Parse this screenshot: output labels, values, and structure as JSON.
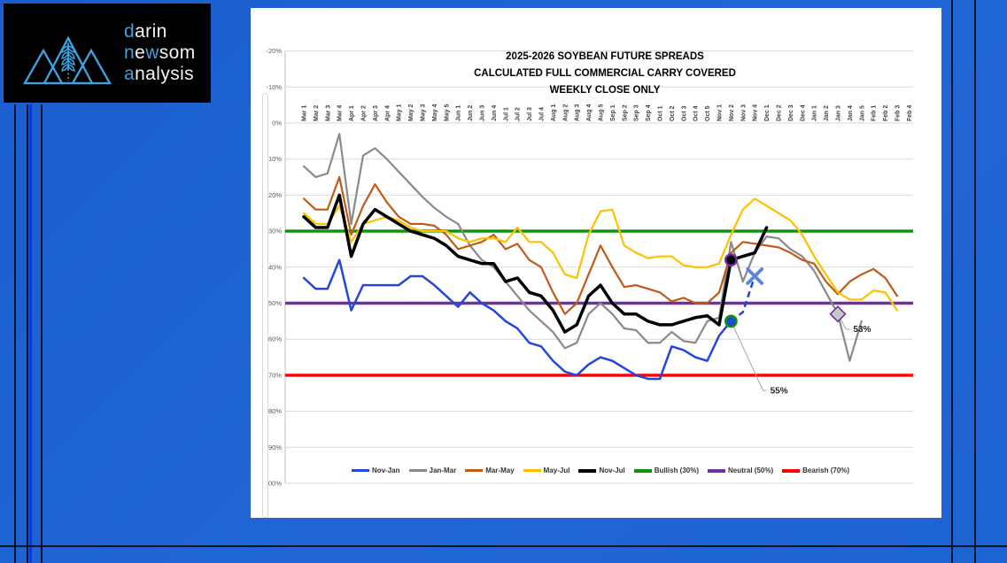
{
  "page": {
    "background": "#1e63d2",
    "accent_stripe_blue": "#0636f0",
    "dark_line": "#0a132e",
    "panel_color": "#ffffff"
  },
  "logo": {
    "box_color": "#000000",
    "accent": "#3aa3e0",
    "text_color": "#f2f2f2",
    "icon": "mountains-wheat-icon",
    "lines": [
      [
        {
          "t": "d",
          "a": 1
        },
        {
          "t": "arin",
          "a": 0
        }
      ],
      [
        {
          "t": "n",
          "a": 1
        },
        {
          "t": "e",
          "a": 0
        },
        {
          "t": "w",
          "a": 1
        },
        {
          "t": "som",
          "a": 0
        }
      ],
      [
        {
          "t": "a",
          "a": 1
        },
        {
          "t": "nalysis",
          "a": 0
        }
      ]
    ]
  },
  "chart_data": {
    "type": "line",
    "title": [
      "2025-2026 SOYBEAN FUTURE SPREADS",
      "CALCULATED FULL COMMERCIAL CARRY COVERED",
      "WEEKLY CLOSE ONLY"
    ],
    "y_axis": {
      "unit": "%",
      "inverted": true,
      "min": -20,
      "max": 100,
      "step": 10,
      "tick_values": [
        -20,
        -10,
        0,
        10,
        20,
        30,
        40,
        50,
        60,
        70,
        80,
        90,
        100
      ],
      "tick_labels": [
        "-20%",
        "-10%",
        "0%",
        "10%",
        "20%",
        "30%",
        "40%",
        "50%",
        "60%",
        "70%",
        "80%",
        "90%",
        "100%"
      ]
    },
    "grid": true,
    "legend_position": "bottom",
    "categories": [
      "Mar 1",
      "Mar 2",
      "Mar 3",
      "Mar 4",
      "Apr 1",
      "Apr 2",
      "Apr 3",
      "Apr 4",
      "May 1",
      "May 2",
      "May 3",
      "May 4",
      "May 5",
      "Jun 1",
      "Jun 2",
      "Jun 3",
      "Jun 4",
      "Jul 1",
      "Jul 2",
      "Jul 3",
      "Jul 4",
      "Aug 1",
      "Aug 2",
      "Aug 3",
      "Aug 4",
      "Aug 5",
      "Sep 1",
      "Sep 2",
      "Sep 3",
      "Sep 4",
      "Oct 1",
      "Oct 2",
      "Oct 3",
      "Oct 4",
      "Oct 5",
      "Nov 1",
      "Nov 2",
      "Nov 3",
      "Nov 4",
      "Dec 1",
      "Dec 2",
      "Dec 3",
      "Dec 4",
      "Jan 1",
      "Jan 2",
      "Jan 3",
      "Jan 4",
      "Jan 5",
      "Feb 1",
      "Feb 2",
      "Feb 3",
      "Feb 4"
    ],
    "series": [
      {
        "name": "Nov-Jan",
        "color": "#2446db",
        "width": 2.5,
        "values": [
          43,
          46,
          46,
          38,
          52,
          45,
          45,
          45,
          45,
          42.5,
          42.5,
          45,
          48,
          51,
          47,
          50,
          52,
          55,
          57,
          61,
          62,
          66,
          69,
          70,
          67,
          65,
          66,
          68,
          70,
          71,
          71,
          62,
          63,
          65,
          66,
          59,
          55
        ]
      },
      {
        "name": "Jan-Mar",
        "color": "#8a8a8a",
        "width": 2.2,
        "values": [
          12,
          15,
          14,
          3,
          28,
          9,
          7,
          10,
          13.5,
          17,
          20.5,
          23.5,
          26,
          28,
          34,
          38,
          40,
          44,
          48,
          52,
          55,
          58,
          62.5,
          61,
          53,
          50,
          53,
          57,
          57.5,
          61,
          61,
          58,
          60.5,
          61,
          55,
          54,
          33,
          44,
          36,
          31.5,
          32,
          35,
          37,
          41,
          47,
          53,
          66,
          55
        ]
      },
      {
        "name": "Mar-May",
        "color": "#c05a17",
        "width": 2.2,
        "values": [
          21,
          24,
          24,
          15,
          31,
          23,
          17,
          22,
          26,
          28,
          28,
          28.5,
          31,
          35,
          34,
          33,
          31,
          35,
          33.5,
          38,
          40,
          47,
          53,
          50,
          42,
          34,
          40,
          45.5,
          45,
          46,
          47,
          49.5,
          48.5,
          50,
          50,
          47,
          36,
          33,
          33.5,
          34,
          34.5,
          36,
          38,
          39,
          44,
          47.5,
          44,
          42,
          40.5,
          43,
          48
        ]
      },
      {
        "name": "May-Jul",
        "color": "#ffc000",
        "width": 2.2,
        "values": [
          25,
          28,
          28,
          23,
          33,
          28,
          27,
          26,
          27,
          29,
          30,
          30,
          30,
          32,
          33,
          32,
          32,
          33,
          29,
          33,
          33,
          36,
          42,
          43,
          31,
          24.5,
          24,
          34,
          36,
          37.5,
          37,
          37,
          39.5,
          40,
          40,
          39,
          31,
          24,
          21,
          23,
          25,
          27,
          31,
          37,
          42,
          47,
          49,
          49,
          46.5,
          47,
          52
        ]
      },
      {
        "name": "Nov-Jul",
        "color": "#000000",
        "width": 3.5,
        "values": [
          26,
          29,
          29,
          20,
          37,
          28,
          24,
          26,
          28,
          30,
          31,
          32,
          34,
          37,
          38,
          39,
          39,
          44,
          43,
          47,
          48,
          52,
          58,
          56,
          48,
          45,
          50,
          53,
          53,
          55,
          56,
          56,
          55,
          54,
          53.5,
          56,
          38,
          37,
          36,
          29
        ]
      }
    ],
    "reference_lines": [
      {
        "name": "Bullish (30%)",
        "value": 30,
        "color": "#0d940d"
      },
      {
        "name": "Neutral (50%)",
        "value": 50,
        "color": "#7030a0"
      },
      {
        "name": "Bearish (70%)",
        "value": 70,
        "color": "#fe0000"
      }
    ],
    "projection": {
      "series": "Nov-Jan",
      "style": "dashed",
      "color": "#2446db",
      "points": [
        [
          36,
          55
        ],
        [
          37,
          52.5
        ],
        [
          38,
          42.5
        ]
      ]
    },
    "markers": [
      {
        "shape": "circle",
        "week": 36,
        "value": 55,
        "fill": "#2446db",
        "ring": "#0d940d",
        "meaning": "nov-jan-last-close"
      },
      {
        "shape": "circle",
        "week": 36,
        "value": 38,
        "fill": "#000000",
        "ring": "#7030a0",
        "meaning": "nov-jul-point"
      },
      {
        "shape": "x",
        "week": 38,
        "value": 42.5,
        "color": "#5b87d9",
        "meaning": "nov-jan-projection"
      },
      {
        "shape": "diamond",
        "week": 45,
        "value": 53,
        "fill": "#c9c9c9",
        "ring": "#7030a0",
        "meaning": "jan-mar-point"
      }
    ],
    "annotations": [
      {
        "text": "55%",
        "text_week": 39.3,
        "text_value": 75,
        "from_week": 36,
        "from_value": 55
      },
      {
        "text": "53%",
        "text_week": 46.3,
        "text_value": 58,
        "from_week": 45,
        "from_value": 53
      }
    ],
    "legend": [
      {
        "label": "Nov-Jan",
        "color": "#2446db",
        "thick": 3
      },
      {
        "label": "Jan-Mar",
        "color": "#8a8a8a",
        "thick": 3
      },
      {
        "label": "Mar-May",
        "color": "#c05a17",
        "thick": 3
      },
      {
        "label": "May-Jul",
        "color": "#ffc000",
        "thick": 3
      },
      {
        "label": "Nov-Jul",
        "color": "#000000",
        "thick": 4
      },
      {
        "label": "Bullish (30%)",
        "color": "#0d940d",
        "thick": 4
      },
      {
        "label": "Neutral (50%)",
        "color": "#7030a0",
        "thick": 4
      },
      {
        "label": "Bearish (70%)",
        "color": "#fe0000",
        "thick": 4
      }
    ]
  }
}
